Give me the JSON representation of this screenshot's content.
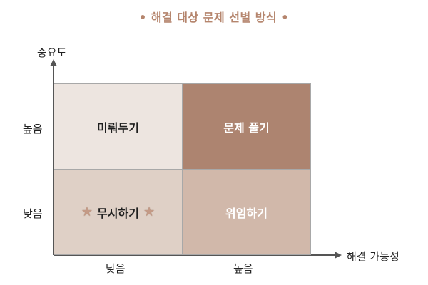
{
  "title": "• 해결 대상 문제 선별 방식 •",
  "axes": {
    "y_title": "중요도",
    "x_title": "해결 가능성",
    "y_ticks": {
      "high": "높음",
      "low": "낮음"
    },
    "x_ticks": {
      "low": "낮음",
      "high": "높음"
    }
  },
  "quadrants": {
    "top_left": "미뤄두기",
    "top_right": "문제 풀기",
    "bottom_left": "무시하기",
    "bottom_right": "위임하기"
  },
  "icons": {
    "star": "star-icon"
  },
  "colors": {
    "title": "#b5856d",
    "top_left": "#ede5e0",
    "top_right": "#ad8470",
    "bottom_left": "#dfd0c6",
    "bottom_right": "#d1b8aa"
  }
}
